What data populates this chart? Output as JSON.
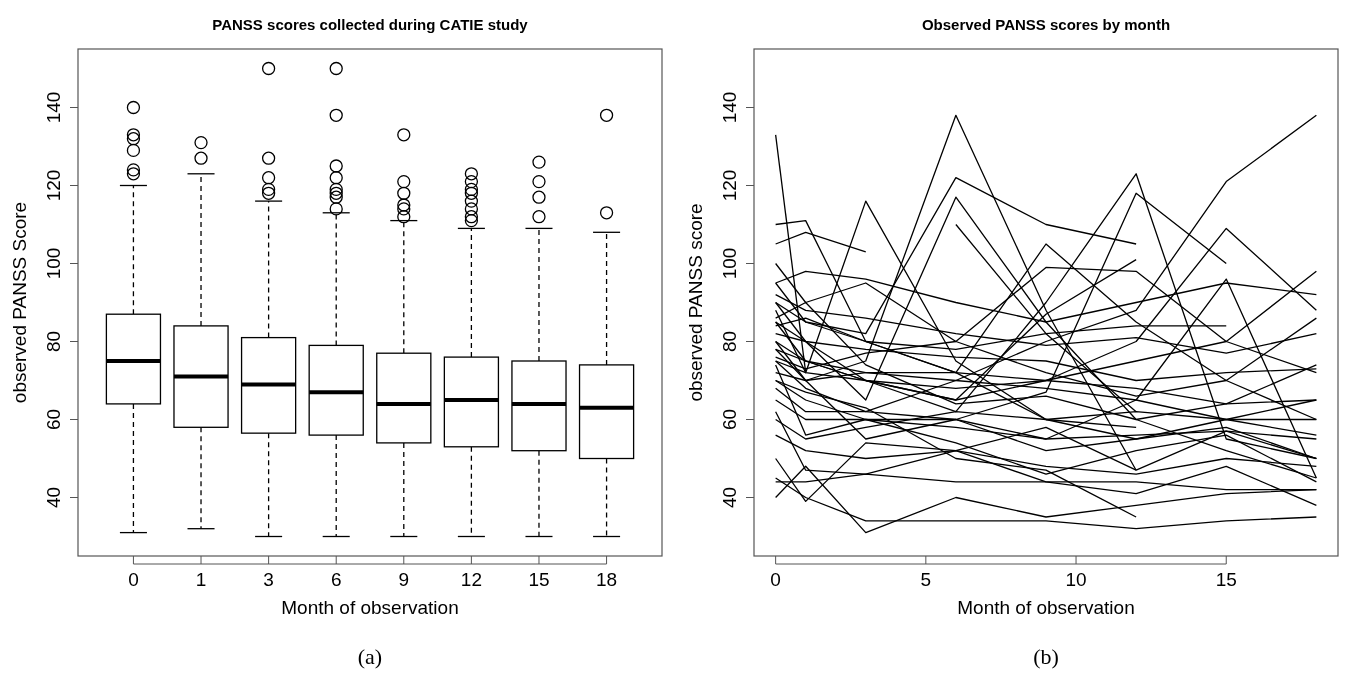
{
  "chart_data": [
    {
      "type": "box",
      "title": "PANSS scores collected during CATIE study",
      "xlabel": "Month of observation",
      "ylabel": "observed PANSS Score",
      "categories": [
        "0",
        "1",
        "3",
        "6",
        "9",
        "12",
        "15",
        "18"
      ],
      "ylim": [
        25,
        155
      ],
      "yticks": [
        40,
        60,
        80,
        100,
        120,
        140
      ],
      "grid": false,
      "annotations": [
        "(a)"
      ],
      "boxes": [
        {
          "low": 31,
          "q1": 64,
          "median": 75,
          "q3": 87,
          "high": 120,
          "outliers": [
            123,
            124,
            129,
            132,
            133,
            140
          ]
        },
        {
          "low": 32,
          "q1": 58,
          "median": 71,
          "q3": 84,
          "high": 123,
          "outliers": [
            127,
            131
          ]
        },
        {
          "low": 30,
          "q1": 56.5,
          "median": 69,
          "q3": 81,
          "high": 116,
          "outliers": [
            118,
            119,
            122,
            127,
            150
          ]
        },
        {
          "low": 30,
          "q1": 56,
          "median": 67,
          "q3": 79,
          "high": 113,
          "outliers": [
            114,
            117,
            118,
            119,
            122,
            125,
            138,
            150
          ]
        },
        {
          "low": 30,
          "q1": 54,
          "median": 64,
          "q3": 77,
          "high": 111,
          "outliers": [
            112,
            114,
            115,
            118,
            121,
            133
          ]
        },
        {
          "low": 30,
          "q1": 53,
          "median": 65,
          "q3": 76,
          "high": 109,
          "outliers": [
            111,
            112,
            114,
            116,
            118,
            119,
            121,
            123
          ]
        },
        {
          "low": 30,
          "q1": 52,
          "median": 64,
          "q3": 75,
          "high": 109,
          "outliers": [
            112,
            117,
            121,
            126
          ]
        },
        {
          "low": 30,
          "q1": 50,
          "median": 63,
          "q3": 74,
          "high": 108,
          "outliers": [
            113,
            138
          ]
        }
      ]
    },
    {
      "type": "line",
      "title": "Observed PANSS scores by month",
      "xlabel": "Month of observation",
      "ylabel": "observed PANSS score",
      "x": [
        0,
        1,
        3,
        6,
        9,
        12,
        15,
        18
      ],
      "xlim": [
        -0.72,
        18.72
      ],
      "xticks": [
        0,
        5,
        10,
        15
      ],
      "ylim": [
        25,
        155
      ],
      "yticks": [
        40,
        60,
        80,
        100,
        120,
        140
      ],
      "grid": false,
      "marker": "none",
      "line_style": "solid",
      "annotations": [
        "(b)"
      ],
      "series": [
        {
          "color": "#000000",
          "x": [
            0,
            1
          ],
          "values": [
            133,
            72
          ]
        },
        {
          "color": "#000000",
          "x": [
            0,
            1,
            3,
            6,
            9,
            12
          ],
          "values": [
            78,
            70,
            75,
            138,
            88,
            47
          ]
        },
        {
          "color": "#000000",
          "x": [
            0,
            1,
            3,
            6,
            9,
            12
          ],
          "values": [
            95,
            85,
            82,
            122,
            110,
            105
          ]
        },
        {
          "color": "#000000",
          "values": [
            90,
            80,
            65,
            117,
            85,
            60,
            52,
            45
          ]
        },
        {
          "color": "#000000",
          "x": [
            6,
            9,
            12
          ],
          "values": [
            110,
            82,
            62
          ]
        },
        {
          "color": "#000000",
          "values": [
            85,
            75,
            70,
            62,
            90,
            123,
            55,
            50
          ]
        },
        {
          "color": "#000000",
          "x": [
            0,
            1,
            3,
            6,
            9,
            12,
            15
          ],
          "values": [
            80,
            70,
            55,
            60,
            67,
            118,
            100
          ]
        },
        {
          "color": "#000000",
          "values": [
            75,
            68,
            62,
            70,
            80,
            88,
            121,
            138
          ]
        },
        {
          "color": "#000000",
          "values": [
            88,
            72,
            116,
            75,
            60,
            55,
            60,
            65
          ]
        },
        {
          "color": "#000000",
          "x": [
            0,
            1,
            3
          ],
          "values": [
            105,
            108,
            103
          ]
        },
        {
          "color": "#000000",
          "x": [
            0,
            1,
            3,
            6,
            9,
            12
          ],
          "values": [
            110,
            111,
            80,
            72,
            60,
            58
          ]
        },
        {
          "color": "#000000",
          "values": [
            100,
            90,
            95,
            80,
            99,
            98,
            80,
            72
          ]
        },
        {
          "color": "#000000",
          "values": [
            90,
            85,
            80,
            72,
            105,
            85,
            70,
            60
          ]
        },
        {
          "color": "#000000",
          "x": [
            0,
            1,
            3,
            6,
            9,
            12
          ],
          "values": [
            85,
            80,
            70,
            65,
            87,
            101
          ]
        },
        {
          "color": "#000000",
          "values": [
            80,
            75,
            70,
            65,
            70,
            80,
            109,
            88
          ]
        },
        {
          "color": "#000000",
          "values": [
            70,
            65,
            60,
            60,
            55,
            65,
            96,
            45
          ]
        },
        {
          "color": "#000000",
          "values": [
            95,
            98,
            96,
            90,
            85,
            90,
            95,
            92
          ]
        },
        {
          "color": "#000000",
          "values": [
            75,
            72,
            70,
            68,
            70,
            75,
            80,
            98
          ]
        },
        {
          "color": "#000000",
          "values": [
            45,
            40,
            34,
            34,
            34,
            32,
            34,
            35
          ]
        },
        {
          "color": "#000000",
          "values": [
            40,
            48,
            31,
            40,
            35,
            38,
            41,
            42
          ]
        },
        {
          "color": "#000000",
          "values": [
            44,
            44,
            46,
            44,
            44,
            44,
            42,
            42
          ]
        },
        {
          "color": "#000000",
          "values": [
            56,
            52,
            50,
            52,
            48,
            46,
            50,
            48
          ]
        },
        {
          "color": "#000000",
          "values": [
            65,
            60,
            60,
            58,
            55,
            56,
            57,
            55
          ]
        },
        {
          "color": "#000000",
          "values": [
            72,
            70,
            72,
            72,
            70,
            68,
            64,
            65
          ]
        },
        {
          "color": "#000000",
          "values": [
            78,
            75,
            72,
            70,
            68,
            65,
            60,
            56
          ]
        },
        {
          "color": "#000000",
          "values": [
            82,
            80,
            78,
            76,
            75,
            70,
            72,
            73
          ]
        },
        {
          "color": "#000000",
          "values": [
            60,
            55,
            58,
            62,
            60,
            62,
            60,
            60
          ]
        },
        {
          "color": "#000000",
          "values": [
            68,
            62,
            62,
            60,
            52,
            55,
            58,
            50
          ]
        },
        {
          "color": "#000000",
          "x": [
            0,
            1,
            3,
            6,
            9,
            12,
            15
          ],
          "values": [
            84,
            86,
            80,
            78,
            82,
            84,
            84
          ]
        },
        {
          "color": "#000000",
          "values": [
            74,
            56,
            60,
            54,
            46,
            52,
            56,
            44
          ]
        },
        {
          "color": "#000000",
          "values": [
            92,
            88,
            86,
            82,
            79,
            81,
            77,
            82
          ]
        },
        {
          "color": "#000000",
          "values": [
            62,
            47,
            46,
            52,
            44,
            41,
            48,
            38
          ]
        },
        {
          "color": "#000000",
          "values": [
            50,
            39,
            54,
            52,
            58,
            47,
            57,
            50
          ]
        },
        {
          "color": "#000000",
          "values": [
            76,
            73,
            77,
            80,
            72,
            66,
            70,
            86
          ]
        },
        {
          "color": "#000000",
          "x": [
            0,
            1,
            3,
            6,
            9,
            12
          ],
          "values": [
            70,
            67,
            63,
            50,
            47,
            35
          ]
        },
        {
          "color": "#000000",
          "values": [
            86,
            90,
            74,
            64,
            66,
            60,
            64,
            74
          ]
        }
      ]
    }
  ]
}
